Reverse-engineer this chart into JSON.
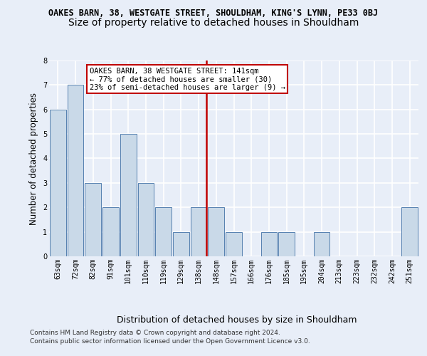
{
  "title_line1": "OAKES BARN, 38, WESTGATE STREET, SHOULDHAM, KING'S LYNN, PE33 0BJ",
  "title_line2": "Size of property relative to detached houses in Shouldham",
  "xlabel": "Distribution of detached houses by size in Shouldham",
  "ylabel": "Number of detached properties",
  "categories": [
    "63sqm",
    "72sqm",
    "82sqm",
    "91sqm",
    "101sqm",
    "110sqm",
    "119sqm",
    "129sqm",
    "138sqm",
    "148sqm",
    "157sqm",
    "166sqm",
    "176sqm",
    "185sqm",
    "195sqm",
    "204sqm",
    "213sqm",
    "223sqm",
    "232sqm",
    "242sqm",
    "251sqm"
  ],
  "values": [
    6,
    7,
    3,
    2,
    5,
    3,
    2,
    1,
    2,
    2,
    1,
    0,
    1,
    1,
    0,
    1,
    0,
    0,
    0,
    0,
    2
  ],
  "bar_color": "#c9d9e8",
  "bar_edge_color": "#5580b0",
  "highlight_line_index": 8,
  "highlight_line_color": "#c00000",
  "annotation_text": "OAKES BARN, 38 WESTGATE STREET: 141sqm\n← 77% of detached houses are smaller (30)\n23% of semi-detached houses are larger (9) →",
  "annotation_box_color": "#c00000",
  "ylim": [
    0,
    8
  ],
  "yticks": [
    0,
    1,
    2,
    3,
    4,
    5,
    6,
    7,
    8
  ],
  "footer_line1": "Contains HM Land Registry data © Crown copyright and database right 2024.",
  "footer_line2": "Contains public sector information licensed under the Open Government Licence v3.0.",
  "background_color": "#e8eef8",
  "plot_bg_color": "#e8eef8",
  "grid_color": "#ffffff",
  "title1_fontsize": 8.5,
  "title2_fontsize": 10,
  "tick_fontsize": 7,
  "ylabel_fontsize": 8.5,
  "xlabel_fontsize": 9,
  "annotation_fontsize": 7.5,
  "footer_fontsize": 6.5
}
